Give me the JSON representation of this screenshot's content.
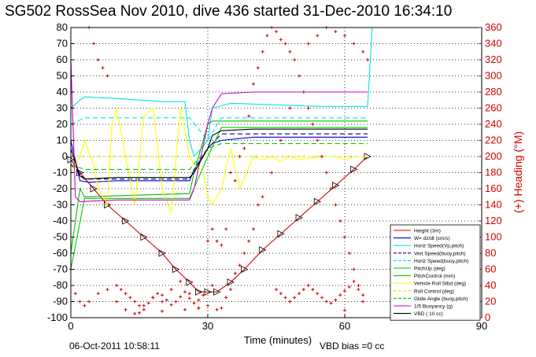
{
  "chart_data": {
    "type": "line",
    "title": "SG502 RossSea Nov 2010, dive 436 started 31-Dec-2010 16:34:10",
    "xlabel": "Time (minutes)",
    "ylabel": "",
    "y2label": "(+) Heading (°M)",
    "xlim": [
      0,
      90
    ],
    "ylim": [
      -100,
      80
    ],
    "y2lim": [
      0,
      360
    ],
    "xticks": [
      "0",
      "30",
      "60",
      "90"
    ],
    "yticks": [
      "80",
      "70",
      "60",
      "50",
      "40",
      "30",
      "20",
      "10",
      "0",
      "-10",
      "-20",
      "-30",
      "-40",
      "-50",
      "-60",
      "-70",
      "-80",
      "-90",
      "-100"
    ],
    "y2ticks": [
      "360",
      "340",
      "320",
      "300",
      "280",
      "260",
      "240",
      "220",
      "200",
      "180",
      "160",
      "140",
      "120",
      "100",
      "80",
      "60",
      "40",
      "20",
      "0"
    ],
    "grid": true,
    "legend_position": "bottom-right",
    "footer_date": "06-Oct-2011 10:58:11",
    "footer_note": "VBD bias =0 cc",
    "series": [
      {
        "name": "Height (3m)",
        "color": "#d40000",
        "style": "solid-triangles",
        "x": [
          0,
          2,
          5,
          8,
          12,
          16,
          20,
          23,
          26,
          28,
          30,
          32,
          35,
          38,
          42,
          46,
          50,
          54,
          58,
          62,
          65
        ],
        "y": [
          -2,
          -10,
          -20,
          -30,
          -40,
          -50,
          -60,
          -70,
          -78,
          -84,
          -84,
          -84,
          -78,
          -70,
          -58,
          -48,
          -38,
          -28,
          -18,
          -8,
          0
        ]
      },
      {
        "name": "W= dz/dt (cm/s)",
        "color": "#0000cc",
        "style": "solid",
        "x": [
          0,
          2,
          4,
          10,
          20,
          26,
          27,
          30,
          31,
          33,
          40,
          50,
          60,
          65
        ],
        "y": [
          10,
          -15,
          -16,
          -15,
          -15,
          -15,
          -8,
          5,
          8,
          10,
          12,
          12,
          12,
          12
        ]
      },
      {
        "name": "Horiz Speed(Vp,pitch)",
        "color": "#00e5e5",
        "style": "solid",
        "x": [
          0,
          2,
          3,
          10,
          20,
          25,
          26,
          27,
          30,
          31,
          35,
          45,
          55,
          65,
          66
        ],
        "y": [
          30,
          35,
          37,
          36,
          34,
          34,
          10,
          0,
          10,
          30,
          33,
          32,
          31,
          31,
          80
        ]
      },
      {
        "name": "Vert Speed(buoy,pitch)",
        "color": "#00008b",
        "style": "dashed",
        "x": [
          0,
          3,
          26,
          30,
          33,
          65
        ],
        "y": [
          -5,
          -14,
          -14,
          5,
          14,
          14
        ]
      },
      {
        "name": "Horiz Speed(buoy,pitch)",
        "color": "#00e5e5",
        "style": "dashed",
        "x": [
          0,
          3,
          26,
          30,
          33,
          65
        ],
        "y": [
          20,
          24,
          24,
          10,
          24,
          24
        ]
      },
      {
        "name": "PitchUp (deg)",
        "color": "#00bb00",
        "style": "solid",
        "x": [
          0,
          2,
          3,
          26,
          27,
          30,
          31,
          65
        ],
        "y": [
          -60,
          -20,
          -25,
          -23,
          -10,
          20,
          22,
          22
        ]
      },
      {
        "name": "PitchControl (mm)",
        "color": "#00cc00",
        "style": "solid",
        "x": [
          0,
          3,
          26,
          30,
          33,
          65
        ],
        "y": [
          -70,
          -26,
          -26,
          0,
          18,
          18
        ]
      },
      {
        "name": "Vehicle Roll Stbd (deg)",
        "color": "#ffff00",
        "style": "solid",
        "x": [
          0,
          2,
          3,
          5,
          6,
          8,
          9,
          10,
          12,
          14,
          16,
          18,
          20,
          22,
          24,
          26,
          27,
          29,
          30,
          31,
          33,
          35,
          37,
          40,
          42,
          44,
          46,
          48,
          50,
          55,
          58,
          60,
          62,
          65
        ],
        "y": [
          -10,
          0,
          10,
          -5,
          -20,
          -30,
          20,
          30,
          0,
          -30,
          25,
          30,
          -20,
          -35,
          30,
          0,
          -5,
          -10,
          -25,
          -30,
          -20,
          5,
          -20,
          0,
          -2,
          0,
          -3,
          0,
          -2,
          0,
          0,
          -2,
          0,
          0
        ]
      },
      {
        "name": "Roll Control (deg)",
        "color": "#e6e600",
        "style": "dashed",
        "x": [
          0,
          5,
          26,
          30,
          33,
          65
        ],
        "y": [
          0,
          0,
          0,
          0,
          0,
          0
        ]
      },
      {
        "name": "Glide Angle (buoy,pitch)",
        "color": "#00cc00",
        "style": "dashed",
        "x": [
          0,
          3,
          26,
          30,
          33,
          65
        ],
        "y": [
          -5,
          -8,
          -8,
          5,
          8,
          8
        ]
      },
      {
        "name": "1/5 Buoyancy (g)",
        "color": "#cc00cc",
        "style": "solid",
        "x": [
          0,
          1,
          2,
          10,
          20,
          26,
          27,
          30,
          31,
          33,
          40,
          50,
          60,
          65
        ],
        "y": [
          60,
          -25,
          -28,
          -27,
          -27,
          -27,
          -20,
          20,
          30,
          39,
          40,
          40,
          40,
          40
        ]
      },
      {
        "name": "VBD ( 10 cc)",
        "color": "#000000",
        "style": "solid",
        "x": [
          0,
          2,
          3,
          10,
          20,
          26,
          27,
          30,
          31,
          33,
          40,
          50,
          60,
          65
        ],
        "y": [
          5,
          -12,
          -14,
          -13,
          -13,
          -13,
          -10,
          5,
          13,
          16,
          17,
          17,
          17,
          17
        ]
      }
    ],
    "heading_series": {
      "name": "Heading",
      "axis": "right",
      "color": "#d40000",
      "marker": "+",
      "x": [
        0,
        1,
        2,
        3,
        4,
        6,
        8,
        10,
        12,
        14,
        16,
        18,
        20,
        22,
        24,
        26,
        28,
        30,
        32,
        33,
        34,
        35,
        36,
        37,
        38,
        39,
        40,
        41,
        42,
        44,
        46,
        48,
        50,
        52,
        54,
        56,
        58,
        60,
        62,
        64,
        65,
        4,
        5,
        6,
        7,
        8,
        30,
        31,
        32,
        33,
        34,
        35,
        36,
        37,
        38,
        39,
        40,
        41,
        42,
        43,
        44,
        45,
        46,
        47,
        48,
        49,
        50,
        51,
        52,
        53,
        54,
        55,
        56,
        57,
        58,
        59,
        60,
        61,
        62,
        63,
        64,
        10,
        11,
        12,
        13,
        14,
        15,
        16,
        17,
        18,
        19,
        20,
        21,
        22,
        23,
        24,
        25,
        26,
        27,
        28,
        29,
        45,
        46,
        47,
        48,
        49,
        50,
        51,
        52,
        53,
        54,
        55,
        56,
        57,
        58,
        59,
        60,
        61,
        62,
        63,
        64,
        15,
        20,
        25,
        28,
        31,
        60
      ],
      "y": [
        60,
        30,
        20,
        15,
        20,
        30,
        35,
        20,
        10,
        5,
        15,
        25,
        20,
        35,
        45,
        30,
        12,
        15,
        10,
        12,
        25,
        35,
        55,
        65,
        80,
        95,
        110,
        140,
        150,
        180,
        220,
        260,
        300,
        340,
        350,
        360,
        355,
        350,
        340,
        330,
        320,
        360,
        340,
        320,
        310,
        300,
        95,
        110,
        95,
        90,
        110,
        180,
        170,
        200,
        210,
        250,
        290,
        310,
        330,
        350,
        360,
        355,
        345,
        340,
        330,
        320,
        300,
        280,
        260,
        240,
        220,
        200,
        180,
        160,
        140,
        120,
        100,
        80,
        60,
        40,
        20,
        40,
        35,
        30,
        25,
        20,
        15,
        10,
        18,
        25,
        30,
        28,
        22,
        16,
        20,
        26,
        32,
        24,
        18,
        22,
        28,
        35,
        30,
        25,
        20,
        25,
        30,
        35,
        40,
        35,
        30,
        25,
        20,
        18,
        22,
        28,
        33,
        38,
        45,
        35,
        28,
        6,
        8,
        10,
        12,
        40,
        9
      ]
    }
  }
}
